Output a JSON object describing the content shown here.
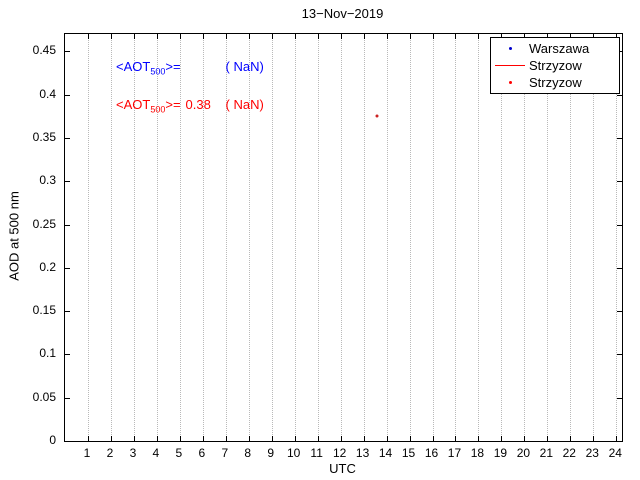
{
  "chart_data": {
    "type": "scatter",
    "title": "13−Nov−2019",
    "xlabel": "UTC",
    "ylabel": "AOD at 500 nm",
    "xlim": [
      0,
      24.25
    ],
    "ylim": [
      0,
      0.47
    ],
    "x_ticks": [
      1,
      2,
      3,
      4,
      5,
      6,
      7,
      8,
      9,
      10,
      11,
      12,
      13,
      14,
      15,
      16,
      17,
      18,
      19,
      20,
      21,
      22,
      23,
      24
    ],
    "y_ticks": [
      0,
      0.05,
      0.1,
      0.15,
      0.2,
      0.25,
      0.3,
      0.35,
      0.4,
      0.45
    ],
    "grid": "vertical-only",
    "legend_position": "top-right",
    "series": [
      {
        "name": "Warszawa",
        "kind": "scatter",
        "marker": "dot",
        "color": "#0000cc",
        "points": []
      },
      {
        "name": "Strzyzow",
        "kind": "line",
        "color": "#ff0000",
        "points": []
      },
      {
        "name": "Strzyzow",
        "kind": "scatter",
        "marker": "dot",
        "color": "#cc2222",
        "points": [
          [
            13.6,
            0.375
          ]
        ]
      }
    ],
    "stats": {
      "warszawa_mean_aot500": "NaN",
      "strzyzow_mean_aot500": 0.38
    }
  },
  "annotations": [
    {
      "pre": "<AOT",
      "sub": "500",
      "eq": ">=",
      "value": "",
      "paren": "( NaN)",
      "color": "#0000ff"
    },
    {
      "pre": "<AOT",
      "sub": "500",
      "eq": ">=",
      "value": "0.38",
      "paren": "( NaN)",
      "color": "#ff0000"
    }
  ],
  "legend": {
    "items": [
      {
        "label": "Warszawa",
        "marker": "dot",
        "color": "#0000cc"
      },
      {
        "label": "Strzyzow",
        "marker": "line",
        "color": "#ff0000"
      },
      {
        "label": "Strzyzow",
        "marker": "dot",
        "color": "#ff0000"
      }
    ]
  }
}
